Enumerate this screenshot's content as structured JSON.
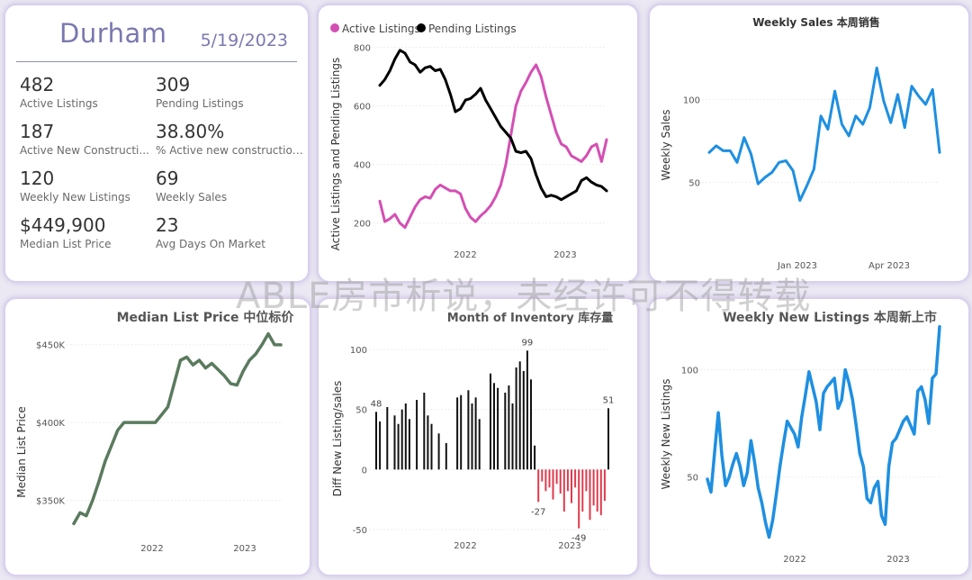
{
  "colors": {
    "active": "#d44fb3",
    "pending": "#000000",
    "blue": "#1e8fe1",
    "green": "#5a7a5e",
    "moi_pos": "#111111",
    "moi_neg": "#e03a4d",
    "city": "#7a78b0"
  },
  "kpi": {
    "city": "Durham",
    "date": "5/19/2023",
    "items": [
      {
        "value": "482",
        "label": "Active Listings"
      },
      {
        "value": "309",
        "label": "Pending Listings"
      },
      {
        "value": "187",
        "label": "Active New Constructi..."
      },
      {
        "value": "38.80%",
        "label": "% Active new constructions"
      },
      {
        "value": "120",
        "label": "Weekly New Listings"
      },
      {
        "value": "69",
        "label": "Weekly Sales"
      },
      {
        "value": "$449,900",
        "label": "Median List Price"
      },
      {
        "value": "23",
        "label": "Avg Days On Market"
      }
    ]
  },
  "watermark": "ABLE房市析说，未经许可不得转载",
  "chart_data": [
    {
      "id": "active_pending",
      "type": "line",
      "title": "",
      "ylabel": "Active Listings and Pending Listings",
      "ylim": [
        150,
        820
      ],
      "yticks": [
        "200",
        "400",
        "600",
        "800"
      ],
      "xticks": [
        "2022",
        "2023"
      ],
      "legend": "top-left",
      "series": [
        {
          "name": "Active Listings",
          "y": [
            275,
            205,
            215,
            230,
            200,
            185,
            220,
            255,
            280,
            290,
            285,
            315,
            330,
            320,
            310,
            310,
            300,
            250,
            220,
            205,
            225,
            240,
            260,
            290,
            330,
            400,
            500,
            600,
            650,
            680,
            715,
            740,
            700,
            630,
            570,
            510,
            470,
            460,
            430,
            420,
            410,
            430,
            460,
            470,
            410,
            485
          ]
        },
        {
          "name": "Pending Listings",
          "y": [
            670,
            690,
            720,
            760,
            790,
            780,
            750,
            740,
            715,
            730,
            735,
            720,
            725,
            690,
            640,
            580,
            590,
            620,
            625,
            640,
            660,
            620,
            590,
            560,
            530,
            510,
            490,
            445,
            440,
            445,
            420,
            365,
            320,
            290,
            295,
            290,
            280,
            290,
            300,
            310,
            345,
            355,
            340,
            330,
            325,
            310
          ]
        }
      ]
    },
    {
      "id": "weekly_sales",
      "type": "line",
      "title": "Weekly Sales 本周销售",
      "ylabel": "Weekly Sales",
      "ylim": [
        10,
        135
      ],
      "yticks": [
        "50",
        "100"
      ],
      "xticks": [
        "Jan 2023",
        "Apr 2023"
      ],
      "series": [
        {
          "name": "",
          "y": [
            68,
            72,
            69,
            69,
            62,
            77,
            67,
            49,
            53,
            56,
            62,
            63,
            57,
            39,
            48,
            58,
            90,
            82,
            105,
            85,
            78,
            90,
            85,
            95,
            119,
            99,
            86,
            103,
            83,
            108,
            102,
            97,
            106,
            68
          ]
        }
      ]
    },
    {
      "id": "median_price",
      "type": "line",
      "title": "Median List Price  中位标价",
      "ylabel": "Median List Price",
      "ylim": [
        330000,
        462000
      ],
      "yticks": [
        "$350K",
        "$400K",
        "$450K"
      ],
      "xticks": [
        "2022",
        "2023"
      ],
      "series": [
        {
          "name": "",
          "y": [
            335000,
            342000,
            340000,
            350000,
            362000,
            375000,
            385000,
            395000,
            400000,
            400000,
            400000,
            400000,
            400000,
            400000,
            405000,
            410000,
            425000,
            440000,
            442000,
            437000,
            440000,
            435000,
            438000,
            434000,
            430000,
            425000,
            424000,
            433000,
            440000,
            444000,
            450000,
            457000,
            450000,
            449900
          ]
        }
      ]
    },
    {
      "id": "month_inventory",
      "type": "bar",
      "title": "Month of Inventory 库存量",
      "ylabel": "Diff New Listing/sales",
      "ylim": [
        -62,
        115
      ],
      "yticks": [
        "-50",
        "0",
        "50",
        "100"
      ],
      "xticks": [
        "2022",
        "2023"
      ],
      "annotations": [
        "48",
        "99",
        "-27",
        "-49",
        "51"
      ],
      "values": [
        48,
        40,
        0,
        52,
        0,
        45,
        38,
        50,
        55,
        42,
        0,
        58,
        0,
        64,
        45,
        38,
        0,
        30,
        0,
        22,
        0,
        0,
        60,
        62,
        0,
        66,
        55,
        60,
        42,
        0,
        0,
        80,
        72,
        68,
        0,
        64,
        70,
        55,
        85,
        90,
        82,
        99,
        75,
        20,
        -27,
        -10,
        -18,
        -15,
        -25,
        -12,
        -20,
        -35,
        -18,
        -28,
        -15,
        -49,
        -35,
        -18,
        -42,
        -30,
        -35,
        -38,
        -26,
        51
      ]
    },
    {
      "id": "weekly_new_listings",
      "type": "line",
      "title": "Weekly New Listings  本周新上市",
      "ylabel": "Weekly New Listings",
      "ylim": [
        18,
        122
      ],
      "yticks": [
        "50",
        "100"
      ],
      "xticks": [
        "2022",
        "2023"
      ],
      "series": [
        {
          "name": "",
          "y": [
            49,
            43,
            62,
            80,
            60,
            46,
            50,
            56,
            61,
            55,
            46,
            52,
            67,
            57,
            45,
            38,
            29,
            22,
            30,
            42,
            55,
            66,
            76,
            73,
            70,
            64,
            78,
            88,
            99,
            92,
            85,
            72,
            89,
            92,
            94,
            96,
            82,
            86,
            100,
            94,
            86,
            74,
            61,
            55,
            40,
            38,
            45,
            48,
            32,
            28,
            55,
            66,
            68,
            72,
            76,
            78,
            74,
            70,
            90,
            92,
            86,
            75,
            96,
            98,
            120
          ]
        }
      ]
    }
  ]
}
